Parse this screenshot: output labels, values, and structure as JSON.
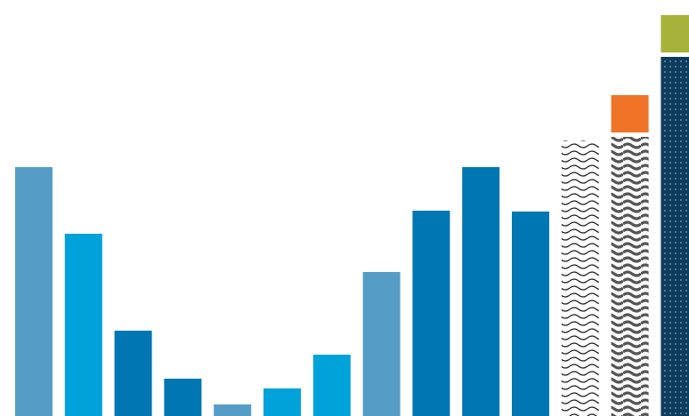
{
  "chart_data": {
    "type": "bar",
    "title": "",
    "xlabel": "",
    "ylabel": "",
    "ylim": [
      0,
      468
    ],
    "grid": false,
    "legend": "none",
    "bars": [
      {
        "value": 280,
        "fill": "#559dc6",
        "pattern": "solid"
      },
      {
        "value": 205,
        "fill": "#00a3d9",
        "pattern": "solid"
      },
      {
        "value": 96,
        "fill": "#0076b3",
        "pattern": "solid"
      },
      {
        "value": 42,
        "fill": "#0076b3",
        "pattern": "solid"
      },
      {
        "value": 13,
        "fill": "#559dc6",
        "pattern": "solid"
      },
      {
        "value": 31,
        "fill": "#00a3d9",
        "pattern": "solid"
      },
      {
        "value": 69,
        "fill": "#00a3d9",
        "pattern": "solid"
      },
      {
        "value": 162,
        "fill": "#559dc6",
        "pattern": "solid"
      },
      {
        "value": 231,
        "fill": "#0076b3",
        "pattern": "solid"
      },
      {
        "value": 280,
        "fill": "#0076b3",
        "pattern": "solid"
      },
      {
        "value": 230,
        "fill": "#0076b3",
        "pattern": "solid"
      },
      {
        "value": 310,
        "fill": "#222222",
        "pattern": "waves-thin"
      },
      {
        "value": 314,
        "fill": "#555555",
        "pattern": "waves-thick"
      },
      {
        "value": 404,
        "fill": "#0d3d5c",
        "pattern": "dots"
      }
    ],
    "stacked_caps": [
      {
        "bar_index": 12,
        "value": 42,
        "fill": "#f07427"
      },
      {
        "bar_index": 13,
        "value": 42,
        "fill": "#a7b23a"
      }
    ]
  }
}
